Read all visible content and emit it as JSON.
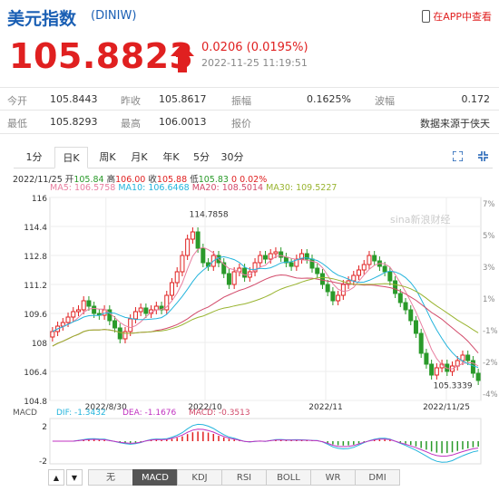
{
  "header": {
    "title": "美元指数",
    "code": "(DINIW)",
    "app_link": "在APP中查看"
  },
  "quote": {
    "price": "105.8823",
    "change": "0.0206 (0.0195%)",
    "timestamp": "2022-11-25 11:19:51",
    "direction": "up",
    "up_color": "#e02020"
  },
  "stats": {
    "row1": [
      {
        "label": "今开",
        "value": "105.8443"
      },
      {
        "label": "昨收",
        "value": "105.8617"
      },
      {
        "label": "振幅",
        "value": "0.1625%"
      },
      {
        "label": "波幅",
        "value": "0.172"
      }
    ],
    "row2": [
      {
        "label": "最低",
        "value": "105.8293"
      },
      {
        "label": "最高",
        "value": "106.0013"
      },
      {
        "label": "报价",
        "value": "数据来源于侠天"
      }
    ]
  },
  "tabs": [
    "1分",
    "日K",
    "周K",
    "月K",
    "年K",
    "5分",
    "30分"
  ],
  "active_tab": "日K",
  "ohlc": {
    "date": "2022/11/25",
    "open_label": "开",
    "open": "105.84",
    "high_label": "高",
    "high": "106.00",
    "close_label": "收",
    "close": "105.88",
    "low_label": "低",
    "low": "105.83",
    "change": "0",
    "change_pct": "0.02%"
  },
  "ma": {
    "ma5": "MA5: 106.5758",
    "ma10": "MA10: 106.6468",
    "ma20": "MA20: 108.5014",
    "ma30": "MA30: 109.5227",
    "colors": {
      "ma5": "#e87fa0",
      "ma10": "#24b4dc",
      "ma20": "#d24a6a",
      "ma30": "#99b430"
    }
  },
  "chart_data": {
    "type": "candlestick",
    "y_ticks_left": [
      "116",
      "114.4",
      "112.8",
      "111.2",
      "109.6",
      "108",
      "106.4",
      "104.8"
    ],
    "y_ticks_right": [
      "7%",
      "5%",
      "3%",
      "1%",
      "-1%",
      "-2%",
      "-4%"
    ],
    "x_ticks": [
      "2022/8/30",
      "2022/10",
      "2022/11",
      "2022/11/25"
    ],
    "ylim": [
      104.8,
      116
    ],
    "annotations": [
      {
        "text": "114.7858",
        "x_index": 26,
        "price": 114.7858
      },
      {
        "text": "105.3339",
        "x_index": 73,
        "price": 105.3339
      }
    ],
    "watermark": "sina新浪财经",
    "closes": [
      108.6,
      108.9,
      109.1,
      109.4,
      109.7,
      109.8,
      110.3,
      110.0,
      109.6,
      109.5,
      109.8,
      109.2,
      108.8,
      108.2,
      108.6,
      109.3,
      109.7,
      109.9,
      109.6,
      109.8,
      110.0,
      109.8,
      110.6,
      111.3,
      111.9,
      112.8,
      113.7,
      114.1,
      113.2,
      112.4,
      112.2,
      112.8,
      112.4,
      111.8,
      111.2,
      111.9,
      112.1,
      111.6,
      111.9,
      112.4,
      112.8,
      112.6,
      112.9,
      113.0,
      112.7,
      112.4,
      112.2,
      112.6,
      112.9,
      112.6,
      112.1,
      111.8,
      111.2,
      110.8,
      110.3,
      110.6,
      111.2,
      111.4,
      111.7,
      112.0,
      112.3,
      112.8,
      112.5,
      112.2,
      111.9,
      111.4,
      110.7,
      110.2,
      109.8,
      109.2,
      108.5,
      107.4,
      106.8,
      106.2,
      106.6,
      106.8,
      106.4,
      106.7,
      107.0,
      107.3,
      107.0,
      106.3,
      105.9
    ],
    "ma_values": [
      "106.5758",
      "106.6468",
      "108.5014",
      "109.5227"
    ],
    "macd": {
      "label": "MACD",
      "dif": "DIF: -1.3432",
      "dea": "DEA: -1.1676",
      "macd": "MACD: -0.3513",
      "y_ticks": [
        "2",
        "-2"
      ]
    }
  },
  "bottom_tabs": [
    "无",
    "MACD",
    "KDJ",
    "RSI",
    "BOLL",
    "WR",
    "DMI"
  ],
  "bottom_active": "MACD",
  "nav": {
    "up": "▲",
    "down": "▼"
  }
}
